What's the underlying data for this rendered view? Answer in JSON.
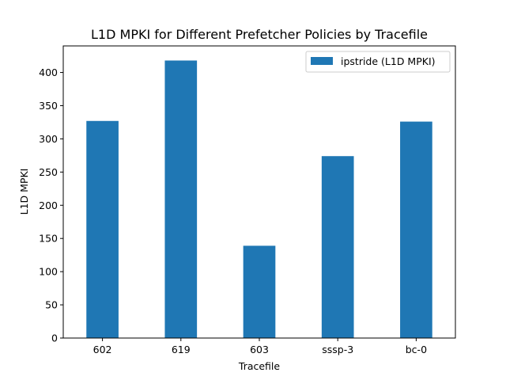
{
  "chart_data": {
    "type": "bar",
    "title": "L1D MPKI for Different Prefetcher Policies by Tracefile",
    "xlabel": "Tracefile",
    "ylabel": "L1D MPKI",
    "categories": [
      "602",
      "619",
      "603",
      "sssp-3",
      "bc-0"
    ],
    "series": [
      {
        "name": "ipstride (L1D MPKI)",
        "values": [
          327,
          418,
          139,
          274,
          326
        ],
        "color": "#1f77b4"
      }
    ],
    "ylim": [
      0,
      440
    ],
    "yticks": [
      0,
      50,
      100,
      150,
      200,
      250,
      300,
      350,
      400
    ],
    "grid": false,
    "legend": "top-right"
  }
}
